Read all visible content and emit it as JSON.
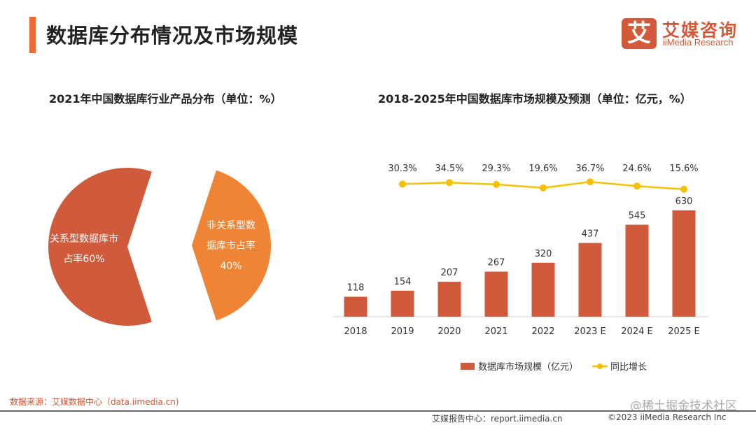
{
  "header": {
    "title": "数据库分布情况及市场规模",
    "logo_mark": "艾",
    "logo_cn": "艾媒咨询",
    "logo_en": "iiMedia Research"
  },
  "chart_data": [
    {
      "type": "pie",
      "title": "2021年中国数据库行业产品分布（单位：%）",
      "slices": [
        {
          "label": "关系型数据库市占率60%",
          "value": 60,
          "color": "#cf5a3c",
          "lines": [
            "关系型数据库市",
            "占率60%"
          ]
        },
        {
          "label": "非关系型数据库市占率40%",
          "value": 40,
          "color": "#ee8434",
          "lines": [
            "非关系型数",
            "据库市占率",
            "40%"
          ]
        }
      ]
    },
    {
      "type": "bar",
      "title": "2018-2025年中国数据库市场规模及预测（单位：亿元，%）",
      "categories": [
        "2018",
        "2019",
        "2020",
        "2021",
        "2022",
        "2023 E",
        "2024 E",
        "2025 E"
      ],
      "series": [
        {
          "name": "数据库市场规模（亿元）",
          "type": "bar",
          "color": "#cf5a3c",
          "values": [
            118,
            154,
            207,
            267,
            320,
            437,
            545,
            630
          ]
        },
        {
          "name": "同比增长",
          "type": "line",
          "color": "#f5c000",
          "values": [
            null,
            30.3,
            34.5,
            29.3,
            19.6,
            36.7,
            24.6,
            15.6
          ],
          "labels": [
            "",
            "30.3%",
            "34.5%",
            "29.3%",
            "19.6%",
            "36.7%",
            "24.6%",
            "15.6%"
          ]
        }
      ],
      "ylim": [
        0,
        630
      ],
      "legend": "bottom"
    }
  ],
  "footer": {
    "source": "数据来源：艾媒数据中心（data.iimedia.cn)",
    "watermark": "@稀土掘金技术社区",
    "report": "艾媒报告中心：report.iimedia.cn",
    "copyright": "©2023  iiMedia Research  Inc"
  }
}
